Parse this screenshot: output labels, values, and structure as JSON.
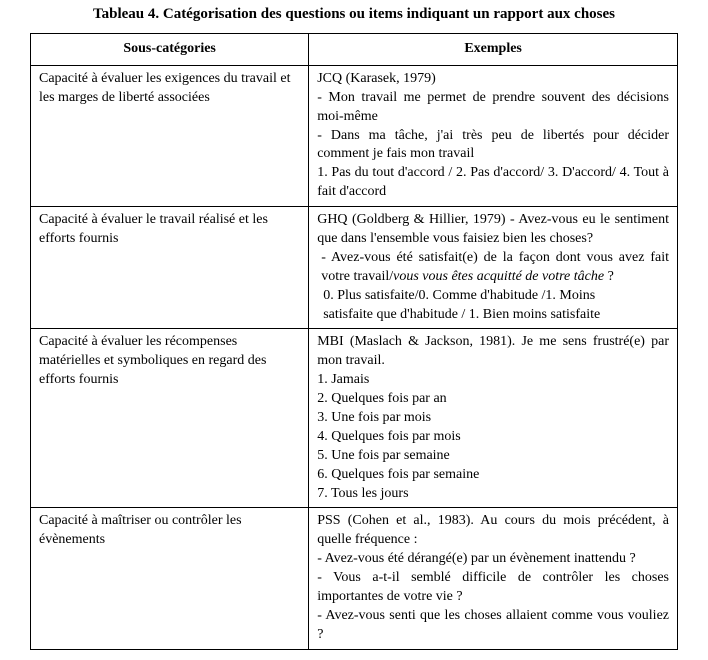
{
  "caption": "Tableau 4. Catégorisation des questions ou items indiquant un rapport aux choses",
  "headers": {
    "left": "Sous-catégories",
    "right": "Exemples"
  },
  "rows": [
    {
      "left": "Capacité à évaluer les exigences du travail et les marges de liberté associées",
      "r_source": "JCQ (Karasek, 1979)",
      "r_item1": "- Mon travail me permet de prendre souvent des décisions moi-même",
      "r_item2": "- Dans ma tâche, j'ai très peu de libertés pour décider comment je fais mon travail",
      "r_scale": "1. Pas du tout d'accord / 2. Pas d'accord/ 3. D'accord/ 4. Tout à fait d'accord"
    },
    {
      "left": "Capacité à évaluer le travail réalisé et les efforts fournis",
      "r_source": "GHQ (Goldberg & Hillier, 1979) - Avez-vous eu le sentiment que dans l'ensemble vous faisiez bien les choses?",
      "r_item1_pre": " - Avez-vous été satisfait(e) de la façon dont vous avez fait votre travail/",
      "r_item1_it": "vous vous êtes acquitté de votre tâche",
      "r_item1_post": " ?",
      "r_scale1": " 0. Plus satisfaite/0. Comme d'habitude /1. Moins",
      "r_scale2": " satisfaite que d'habitude / 1. Bien moins satisfaite"
    },
    {
      "left": "Capacité à évaluer les récompenses matérielles et symboliques en regard des efforts fournis",
      "r_source": "MBI (Maslach & Jackson, 1981). Je me sens frustré(e) par mon travail.",
      "r_l1": "1. Jamais",
      "r_l2": "2. Quelques fois par an",
      "r_l3": "3. Une fois par mois",
      "r_l4": "4. Quelques fois par mois",
      "r_l5": "5. Une fois par semaine",
      "r_l6": "6. Quelques fois par semaine",
      "r_l7": "7. Tous les jours"
    },
    {
      "left": "Capacité à maîtriser ou contrôler les évènements",
      "r_source": "PSS (Cohen et al., 1983). Au cours du mois précédent, à quelle fréquence :",
      "r_item1": "- Avez-vous été dérangé(e) par un évènement inattendu ?",
      "r_item2": "- Vous a-t-il semblé difficile de contrôler les choses importantes de votre vie ?",
      "r_item3": "- Avez-vous senti que les choses allaient comme vous vouliez ?"
    }
  ]
}
